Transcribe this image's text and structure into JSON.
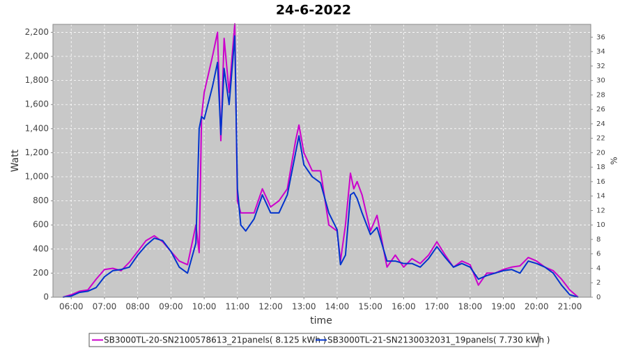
{
  "chart_data": {
    "type": "line",
    "title": "24-6-2022",
    "x_label": "time",
    "y_label": "Watt",
    "y2_label": "%",
    "xlim": [
      5.45,
      21.63
    ],
    "xticks": [
      {
        "value": 6,
        "label": "06:00"
      },
      {
        "value": 7,
        "label": "07:00"
      },
      {
        "value": 8,
        "label": "08:00"
      },
      {
        "value": 9,
        "label": "09:00"
      },
      {
        "value": 10,
        "label": "10:00"
      },
      {
        "value": 11,
        "label": "11:00"
      },
      {
        "value": 12,
        "label": "12:00"
      },
      {
        "value": 13,
        "label": "13:00"
      },
      {
        "value": 14,
        "label": "14:00"
      },
      {
        "value": 15,
        "label": "15:00"
      },
      {
        "value": 16,
        "label": "16:00"
      },
      {
        "value": 17,
        "label": "17:00"
      },
      {
        "value": 18,
        "label": "18:00"
      },
      {
        "value": 19,
        "label": "19:00"
      },
      {
        "value": 20,
        "label": "20:00"
      },
      {
        "value": 21,
        "label": "21:00"
      }
    ],
    "ylim": [
      0,
      2266
    ],
    "yticks": [
      0,
      200,
      400,
      600,
      800,
      {
        "value": 1000,
        "label": "1,000"
      },
      {
        "value": 1200,
        "label": "1,200"
      },
      {
        "value": 1400,
        "label": "1,400"
      },
      {
        "value": 1600,
        "label": "1,600"
      },
      {
        "value": 1800,
        "label": "1,800"
      },
      {
        "value": 2000,
        "label": "2,000"
      },
      {
        "value": 2200,
        "label": "2,200"
      }
    ],
    "y2lim": [
      0,
      37.77
    ],
    "y2ticks": [
      0,
      2,
      4,
      6,
      8,
      10,
      12,
      14,
      16,
      18,
      20,
      22,
      24,
      26,
      28,
      30,
      32,
      34,
      36
    ],
    "grid": true,
    "x": [
      5.75,
      6.0,
      6.25,
      6.5,
      6.75,
      7.0,
      7.25,
      7.5,
      7.75,
      8.0,
      8.25,
      8.5,
      8.75,
      9.0,
      9.25,
      9.5,
      9.75,
      9.85,
      9.92,
      10.0,
      10.25,
      10.4,
      10.5,
      10.6,
      10.75,
      10.92,
      11.0,
      11.1,
      11.25,
      11.5,
      11.75,
      12.0,
      12.25,
      12.5,
      12.75,
      12.85,
      13.0,
      13.25,
      13.5,
      13.75,
      14.0,
      14.1,
      14.25,
      14.4,
      14.5,
      14.6,
      14.75,
      15.0,
      15.2,
      15.5,
      15.75,
      16.0,
      16.25,
      16.5,
      16.75,
      17.0,
      17.25,
      17.5,
      17.75,
      18.0,
      18.25,
      18.5,
      18.75,
      19.0,
      19.25,
      19.5,
      19.75,
      20.0,
      20.25,
      20.5,
      20.75,
      21.0,
      21.25
    ],
    "series": [
      {
        "name": "SB3000TL-20-SN2100578613_21panels( 8.125 kWh )",
        "color": "#cc00cc",
        "values": [
          0,
          20,
          50,
          60,
          150,
          230,
          240,
          220,
          290,
          380,
          470,
          510,
          460,
          380,
          300,
          270,
          600,
          370,
          1500,
          1700,
          2000,
          2200,
          1300,
          2150,
          1700,
          2270,
          800,
          700,
          700,
          700,
          900,
          750,
          800,
          900,
          1300,
          1430,
          1200,
          1050,
          1050,
          600,
          550,
          300,
          600,
          1030,
          900,
          960,
          850,
          550,
          680,
          250,
          350,
          250,
          320,
          280,
          350,
          460,
          350,
          250,
          300,
          270,
          100,
          200,
          200,
          230,
          250,
          260,
          330,
          300,
          250,
          220,
          150,
          60,
          0
        ]
      },
      {
        "name": "SB3000TL-21-SN2130032031_19panels( 7.730 kWh )",
        "color": "#0033cc",
        "values": [
          0,
          10,
          40,
          50,
          80,
          170,
          220,
          230,
          250,
          350,
          430,
          490,
          470,
          380,
          250,
          200,
          450,
          1400,
          1500,
          1480,
          1750,
          1950,
          1350,
          1900,
          1600,
          2170,
          900,
          600,
          550,
          650,
          850,
          700,
          700,
          850,
          1200,
          1340,
          1100,
          1000,
          950,
          700,
          560,
          270,
          350,
          850,
          870,
          820,
          700,
          520,
          580,
          300,
          300,
          280,
          280,
          250,
          320,
          420,
          330,
          250,
          280,
          250,
          150,
          180,
          200,
          220,
          230,
          200,
          300,
          280,
          250,
          200,
          100,
          20,
          0
        ]
      }
    ]
  }
}
